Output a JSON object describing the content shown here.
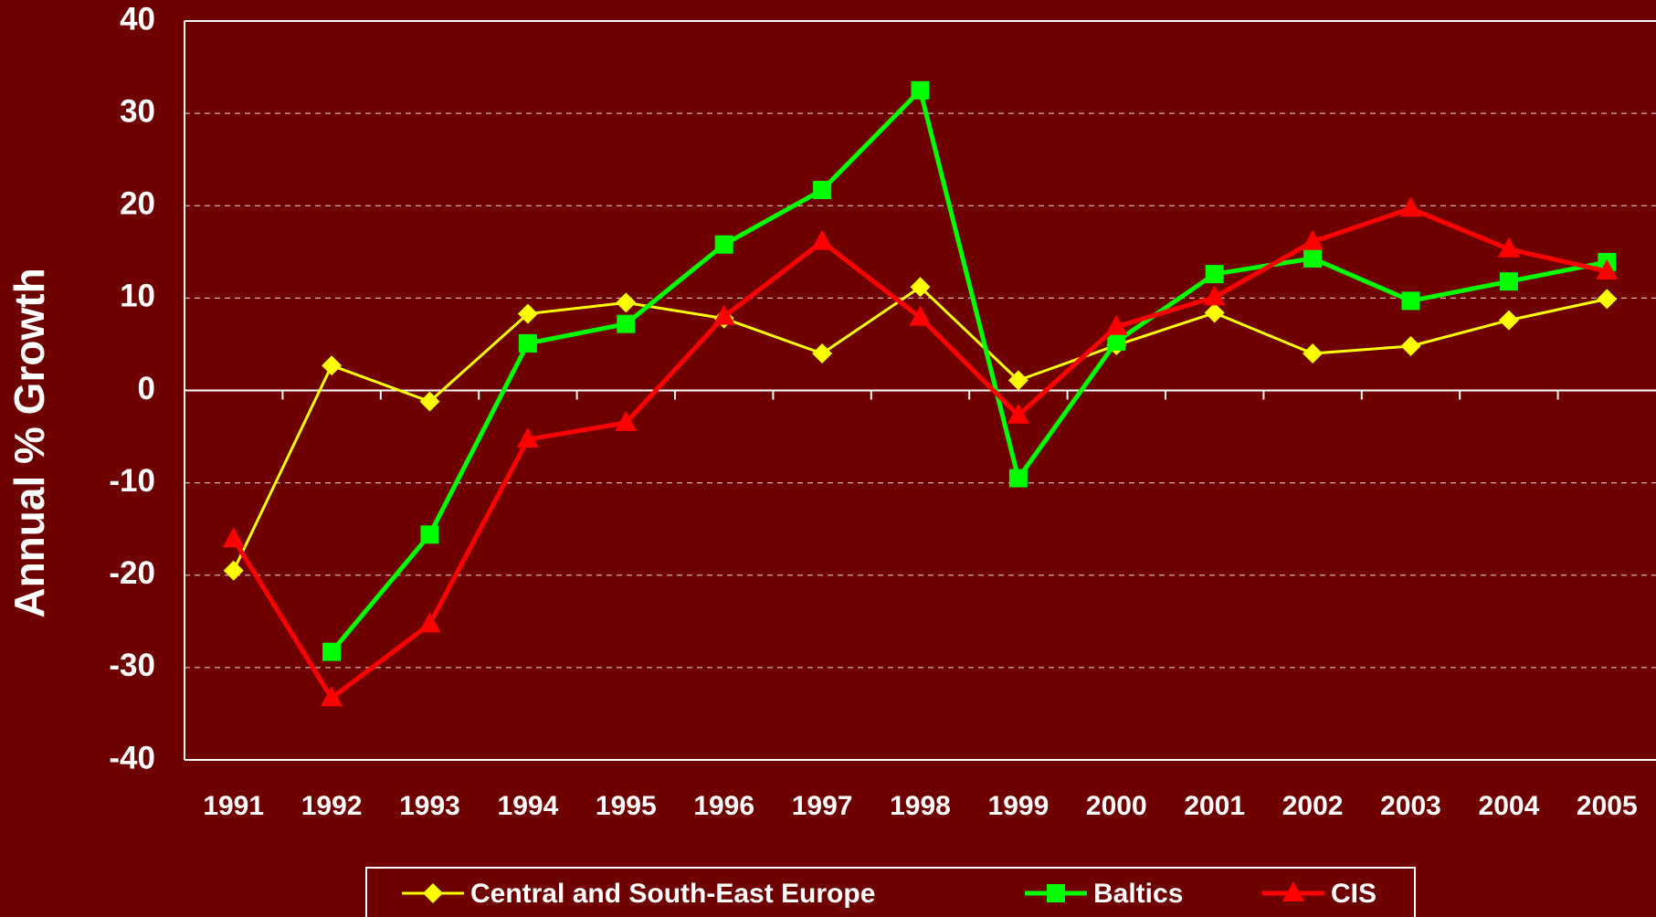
{
  "chart_data": {
    "type": "line",
    "y_label": "Annual % Growth",
    "categories": [
      "1991",
      "1992",
      "1993",
      "1994",
      "1995",
      "1996",
      "1997",
      "1998",
      "1999",
      "2000",
      "2001",
      "2002",
      "2003",
      "2004",
      "2005"
    ],
    "series": [
      {
        "name": "Central and South-East Europe",
        "color": "#ffff00",
        "marker": "diamond",
        "values": [
          -19.5,
          2.7,
          -1.2,
          8.3,
          9.5,
          7.8,
          4.0,
          11.2,
          1.1,
          4.9,
          8.4,
          4.0,
          4.8,
          7.6,
          9.9
        ]
      },
      {
        "name": "Baltics",
        "color": "#00ff00",
        "marker": "square",
        "values": [
          null,
          -28.3,
          -15.6,
          5.1,
          7.2,
          15.8,
          21.7,
          32.5,
          -9.5,
          5.3,
          12.6,
          14.3,
          9.7,
          11.8,
          13.9
        ]
      },
      {
        "name": "CIS",
        "color": "#ff0000",
        "marker": "triangle",
        "values": [
          -16.1,
          -33.3,
          -25.3,
          -5.3,
          -3.5,
          8.0,
          16.1,
          7.9,
          -2.7,
          6.9,
          10.1,
          16.1,
          19.7,
          15.3,
          12.9
        ]
      }
    ],
    "ylim": [
      -40,
      40
    ],
    "yticks": [
      -40,
      -30,
      -20,
      -10,
      0,
      10,
      20,
      30,
      40
    ],
    "grid": true,
    "legend": "bottom"
  }
}
